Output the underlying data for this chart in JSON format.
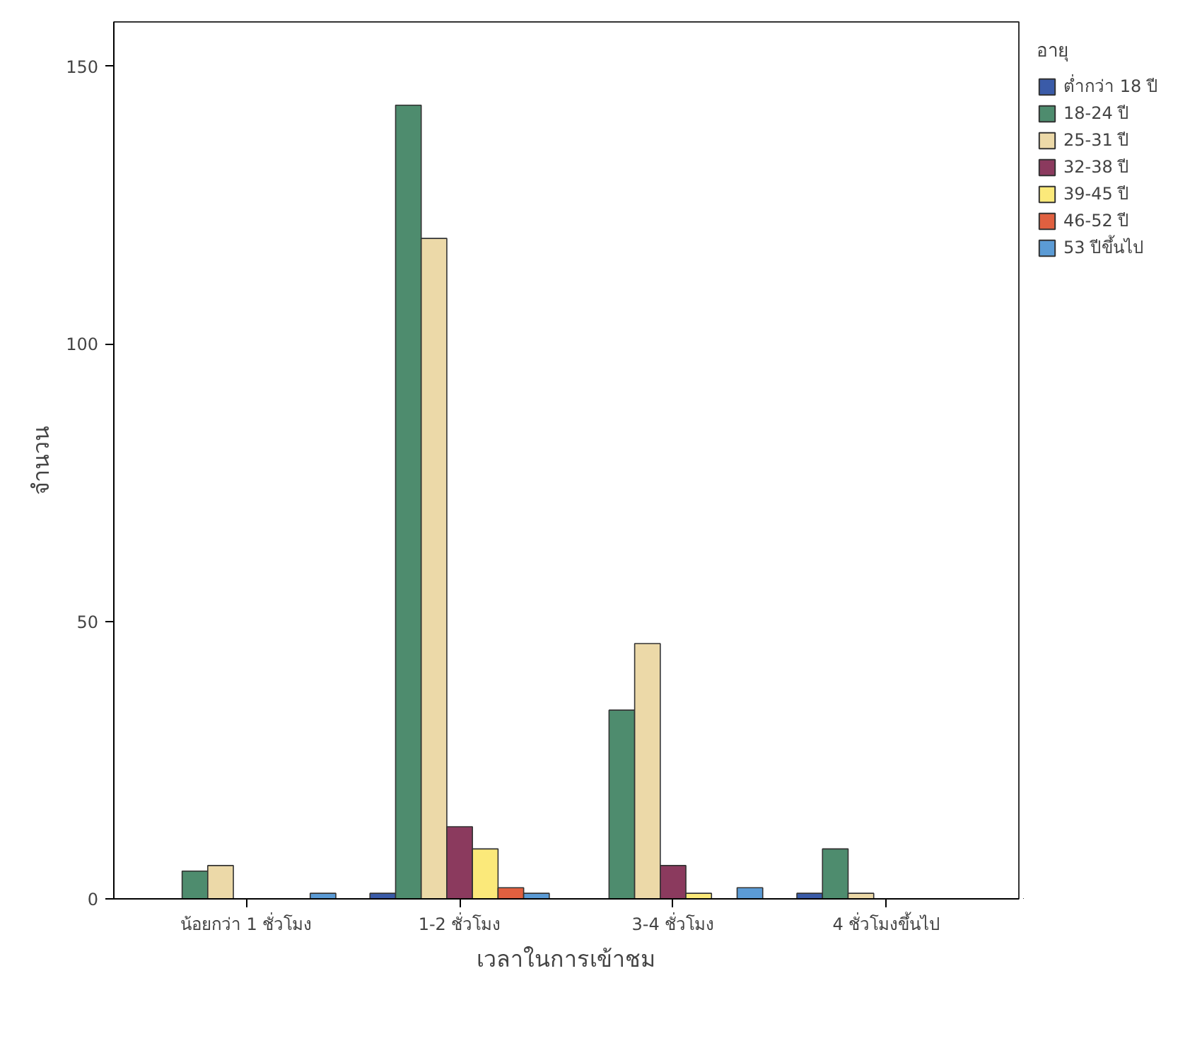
{
  "chart_data": {
    "type": "bar",
    "xlabel": "เวลาในการเข้าชม",
    "ylabel": "จำนวน",
    "legend_title": "อายุ",
    "categories": [
      "น้อยกว่า 1 ชั่วโมง",
      "1-2 ชั่วโมง",
      "3-4 ชั่วโมง",
      "4 ชั่วโมงขึ้นไป"
    ],
    "series": [
      {
        "name": "ต่ำกว่า 18 ปี",
        "color": "#3a5ba8",
        "values": [
          null,
          1,
          null,
          1
        ]
      },
      {
        "name": "18-24 ปี",
        "color": "#4e8c6e",
        "values": [
          5,
          143,
          34,
          9
        ]
      },
      {
        "name": "25-31 ปี",
        "color": "#ecd9a8",
        "values": [
          6,
          119,
          46,
          1
        ]
      },
      {
        "name": "32-38 ปี",
        "color": "#8b3a5e",
        "values": [
          null,
          13,
          6,
          null
        ]
      },
      {
        "name": "39-45 ปี",
        "color": "#fbe97a",
        "values": [
          null,
          9,
          1,
          null
        ]
      },
      {
        "name": "46-52 ปี",
        "color": "#e06040",
        "values": [
          null,
          2,
          null,
          null
        ]
      },
      {
        "name": "53 ปีขึ้นไป",
        "color": "#5b9bd5",
        "values": [
          1,
          1,
          2,
          null
        ]
      }
    ],
    "ylim": [
      0,
      158
    ],
    "yticks": [
      0,
      50,
      100,
      150
    ],
    "grid": false,
    "legend": "right"
  }
}
